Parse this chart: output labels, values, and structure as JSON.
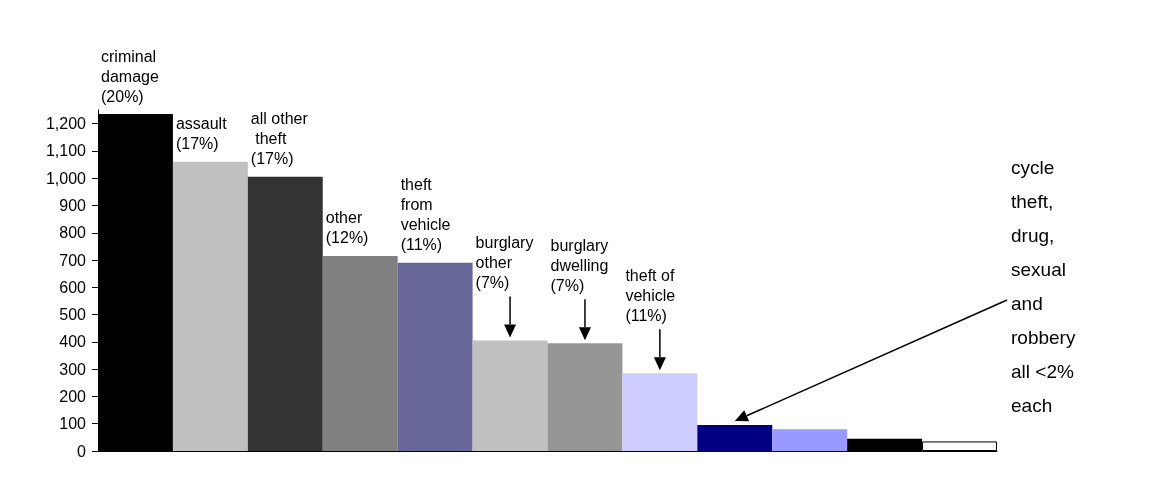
{
  "chart_data": {
    "type": "bar",
    "categories": [
      null,
      null,
      null,
      null,
      null,
      null,
      null,
      null,
      null,
      null,
      null,
      null
    ],
    "values": [
      1235,
      1060,
      1005,
      715,
      690,
      405,
      395,
      285,
      95,
      80,
      45,
      35
    ],
    "colors": [
      "#000000",
      "#c0c0c0",
      "#333333",
      "#808080",
      "#666699",
      "#c0c0c0",
      "#969696",
      "#ccccff",
      "#000080",
      "#9999ff",
      "#000000",
      "#ffffff"
    ],
    "ylim": [
      0,
      1250
    ],
    "yticks": [
      0,
      100,
      200,
      300,
      400,
      500,
      600,
      700,
      800,
      900,
      {
        "value": 1000,
        "label": "1,000"
      },
      {
        "value": 1100,
        "label": "1,100"
      },
      {
        "value": 1200,
        "label": "1,200"
      }
    ],
    "annotations": [
      "criminal damage (20%)",
      "assault (17%)",
      "all other theft (17%)",
      "other (12%)",
      "theft from vehicle (11%)",
      "burglary other (7%)",
      "burglary dwelling (7%)",
      "theft of vehicle (11%)",
      "cycle theft, drug, sexual and robbery all <2% each"
    ]
  }
}
